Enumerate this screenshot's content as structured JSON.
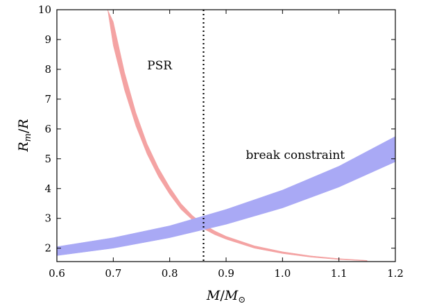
{
  "chart_data": {
    "type": "area",
    "title": "",
    "xlabel": "M/M⊙",
    "ylabel": "Rm/R",
    "xlabel_parts": {
      "main": "M",
      "slash": "/",
      "main2": "M",
      "sub2": "⊙"
    },
    "ylabel_parts": {
      "main": "R",
      "sub": "m",
      "slash": "/",
      "main2": "R"
    },
    "xlim": [
      0.6,
      1.2
    ],
    "ylim": [
      1.55,
      10
    ],
    "x_ticks": [
      0.6,
      0.7,
      0.8,
      0.9,
      1.0,
      1.1,
      1.2
    ],
    "x_tick_labels": [
      "0.6",
      "0.7",
      "0.8",
      "0.9",
      "1.0",
      "1.1",
      "1.2"
    ],
    "y_ticks": [
      2,
      3,
      4,
      5,
      6,
      7,
      8,
      9,
      10
    ],
    "y_tick_labels": [
      "2",
      "3",
      "4",
      "5",
      "6",
      "7",
      "8",
      "9",
      "10"
    ],
    "grid": false,
    "series": [
      {
        "name": "PSR",
        "kind": "band",
        "color": "#f4a3a3",
        "x": [
          0.69,
          0.7,
          0.72,
          0.74,
          0.76,
          0.78,
          0.8,
          0.82,
          0.84,
          0.86,
          0.88,
          0.9,
          0.95,
          1.0,
          1.05,
          1.1,
          1.15
        ],
        "lower": [
          10.0,
          8.8,
          7.3,
          6.1,
          5.15,
          4.4,
          3.8,
          3.3,
          2.95,
          2.65,
          2.45,
          2.3,
          2.0,
          1.82,
          1.7,
          1.62,
          1.57
        ],
        "upper": [
          10.0,
          9.6,
          7.9,
          6.55,
          5.5,
          4.7,
          4.05,
          3.5,
          3.1,
          2.8,
          2.58,
          2.4,
          2.08,
          1.88,
          1.74,
          1.65,
          1.59
        ]
      },
      {
        "name": "break constraint",
        "kind": "band",
        "color": "#a9a9f5",
        "x": [
          0.6,
          0.7,
          0.8,
          0.9,
          1.0,
          1.1,
          1.2
        ],
        "lower": [
          1.75,
          2.0,
          2.35,
          2.8,
          3.35,
          4.05,
          4.9
        ],
        "upper": [
          2.05,
          2.35,
          2.75,
          3.3,
          3.95,
          4.75,
          5.75
        ]
      }
    ],
    "vlines": [
      {
        "x": 0.86,
        "style": "dotted",
        "color": "#000000"
      }
    ],
    "annotations": [
      {
        "text": "PSR",
        "x": 0.76,
        "y": 8.0
      },
      {
        "text": "break constraint",
        "x": 0.935,
        "y": 5.0
      }
    ]
  }
}
